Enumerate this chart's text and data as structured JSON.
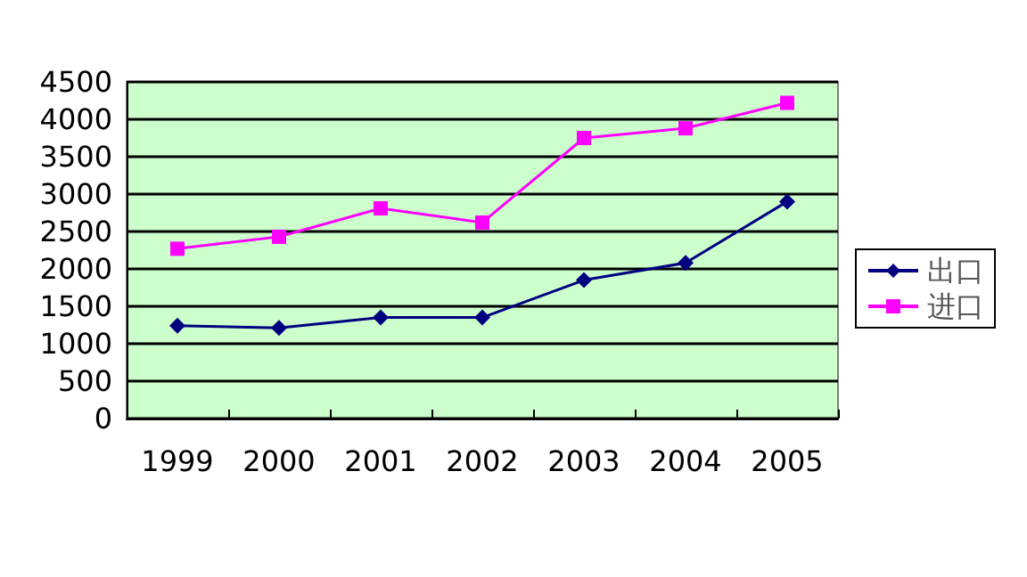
{
  "chart_data": {
    "type": "line",
    "categories": [
      "1999",
      "2000",
      "2001",
      "2002",
      "2003",
      "2004",
      "2005"
    ],
    "series": [
      {
        "name": "出口",
        "color": "#000080",
        "marker": "diamond",
        "values": [
          1240,
          1210,
          1350,
          1350,
          1850,
          2080,
          2900
        ]
      },
      {
        "name": "进口",
        "color": "#ff00ff",
        "marker": "square",
        "values": [
          2270,
          2430,
          2810,
          2620,
          3750,
          3880,
          4220
        ]
      }
    ],
    "ylim": [
      0,
      4500
    ],
    "yticks": [
      0,
      500,
      1000,
      1500,
      2000,
      2500,
      3000,
      3500,
      4000,
      4500
    ],
    "grid": "y",
    "legend": "right",
    "line_style": "solid"
  }
}
